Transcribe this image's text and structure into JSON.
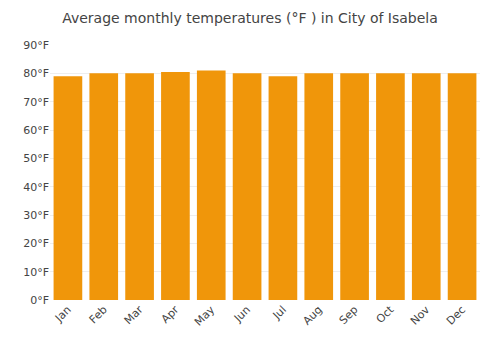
{
  "chart_data": {
    "type": "bar",
    "title": "Average monthly temperatures (°F ) in City of Isabela",
    "categories": [
      "Jan",
      "Feb",
      "Mar",
      "Apr",
      "May",
      "Jun",
      "Jul",
      "Aug",
      "Sep",
      "Oct",
      "Nov",
      "Dec"
    ],
    "values": [
      79,
      80,
      80,
      80.5,
      81,
      80,
      79,
      80,
      80,
      80,
      80,
      80
    ],
    "color": "#F0960A",
    "ylim": [
      0,
      90
    ],
    "yticks": [
      {
        "value": 0,
        "label": "0°F"
      },
      {
        "value": 10,
        "label": "10°F"
      },
      {
        "value": 20,
        "label": "20°F"
      },
      {
        "value": 30,
        "label": "30°F"
      },
      {
        "value": 40,
        "label": "40°F"
      },
      {
        "value": 50,
        "label": "50°F"
      },
      {
        "value": 60,
        "label": "60°F"
      },
      {
        "value": 70,
        "label": "70°F"
      },
      {
        "value": 80,
        "label": "80°F"
      },
      {
        "value": 90,
        "label": "90°F"
      }
    ],
    "grid": true
  }
}
